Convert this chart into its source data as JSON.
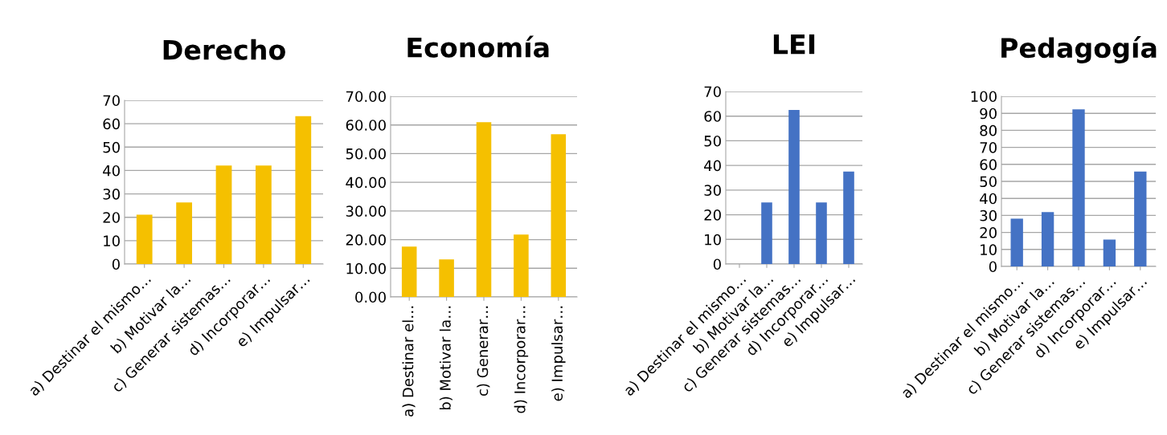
{
  "chart_data": [
    {
      "type": "bar",
      "title": "Derecho",
      "categories": [
        "a) Destinar el mismo…",
        "b) Motivar la…",
        "c) Generar sistemas…",
        "d) Incorporar…",
        "e) Impulsar…"
      ],
      "values": [
        21.1,
        26.3,
        42.1,
        42.1,
        63.2
      ],
      "color": "#f5c000",
      "ylim": [
        0,
        70
      ],
      "yticks": [
        0,
        10,
        20,
        30,
        40,
        50,
        60,
        70
      ],
      "grid": "y"
    },
    {
      "type": "bar",
      "title": "Economía",
      "categories": [
        "a) Destinar el…",
        "b) Motivar la…",
        "c) Generar…",
        "d) Incorporar…",
        "e) Impulsar…"
      ],
      "values": [
        17.6,
        13.1,
        61.0,
        21.8,
        56.8
      ],
      "color": "#f5c000",
      "ylim": [
        0,
        70
      ],
      "yticks": [
        {
          "value": 0,
          "label": "0.00"
        },
        {
          "value": 10,
          "label": "10.00"
        },
        {
          "value": 20,
          "label": "20.00"
        },
        {
          "value": 30,
          "label": "30.00"
        },
        {
          "value": 40,
          "label": "40.00"
        },
        {
          "value": 50,
          "label": "50.00"
        },
        {
          "value": 60,
          "label": "60.00"
        },
        {
          "value": 70,
          "label": "70.00"
        }
      ],
      "grid": "y"
    },
    {
      "type": "bar",
      "title": "LEI",
      "categories": [
        "a) Destinar el mismo…",
        "b) Motivar la…",
        "c) Generar sistemas…",
        "d) Incorporar…",
        "e) Impulsar…"
      ],
      "values": [
        0,
        25.0,
        62.5,
        25.0,
        37.5
      ],
      "color": "#4472c4",
      "ylim": [
        0,
        70
      ],
      "yticks": [
        0,
        10,
        20,
        30,
        40,
        50,
        60,
        70
      ],
      "grid": "y"
    },
    {
      "type": "bar",
      "title": "Pedagogía",
      "categories": [
        "a) Destinar el mismo…",
        "b) Motivar la…",
        "c) Generar sistemas…",
        "d) Incorporar…",
        "e) Impulsar…"
      ],
      "values": [
        28.1,
        31.9,
        92.3,
        15.8,
        55.8
      ],
      "color": "#4472c4",
      "ylim": [
        0,
        100
      ],
      "yticks": [
        0,
        10,
        20,
        30,
        40,
        50,
        60,
        70,
        80,
        90,
        100
      ],
      "grid": "y"
    }
  ]
}
